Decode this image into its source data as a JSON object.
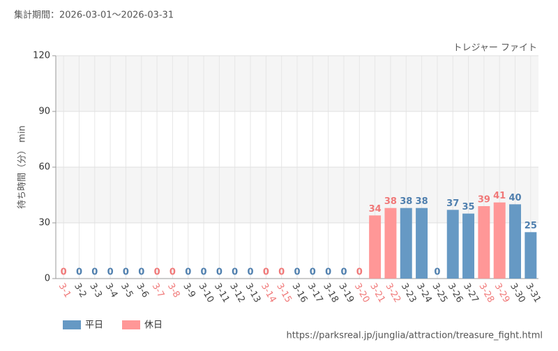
{
  "header": "集計期間：2026-03-01～2026-03-31",
  "footer": "https://parksreal.jp/junglia/attraction/treasure_fight.html",
  "chart_data": {
    "type": "bar",
    "subtitle": "トレジャー ファイト",
    "y_label": "待ち時間（分） min",
    "categories": [
      "3-1",
      "3-2",
      "3-3",
      "3-4",
      "3-5",
      "3-6",
      "3-7",
      "3-8",
      "3-9",
      "3-10",
      "3-11",
      "3-12",
      "3-13",
      "3-14",
      "3-15",
      "3-16",
      "3-17",
      "3-18",
      "3-19",
      "3-20",
      "3-21",
      "3-22",
      "3-23",
      "3-24",
      "3-25",
      "3-26",
      "3-27",
      "3-28",
      "3-29",
      "3-30",
      "3-31"
    ],
    "series": [
      {
        "name": "平日",
        "color": "#6699c4",
        "label_color": "#4f7fae",
        "tick_color": "#444444",
        "values": [
          null,
          0,
          0,
          0,
          0,
          0,
          null,
          null,
          0,
          0,
          0,
          0,
          0,
          null,
          null,
          0,
          0,
          0,
          0,
          null,
          null,
          null,
          38,
          38,
          0,
          37,
          35,
          null,
          null,
          40,
          25
        ]
      },
      {
        "name": "休日",
        "color": "#ff9797",
        "label_color": "#f07878",
        "tick_color": "#f07878",
        "values": [
          0,
          null,
          null,
          null,
          null,
          null,
          0,
          0,
          null,
          null,
          null,
          null,
          null,
          0,
          0,
          null,
          null,
          null,
          null,
          0,
          34,
          38,
          null,
          null,
          null,
          null,
          null,
          39,
          41,
          null,
          null
        ]
      }
    ],
    "ylim": [
      0,
      120
    ],
    "yticks": [
      0,
      30,
      60,
      90,
      120
    ],
    "grid": true
  }
}
